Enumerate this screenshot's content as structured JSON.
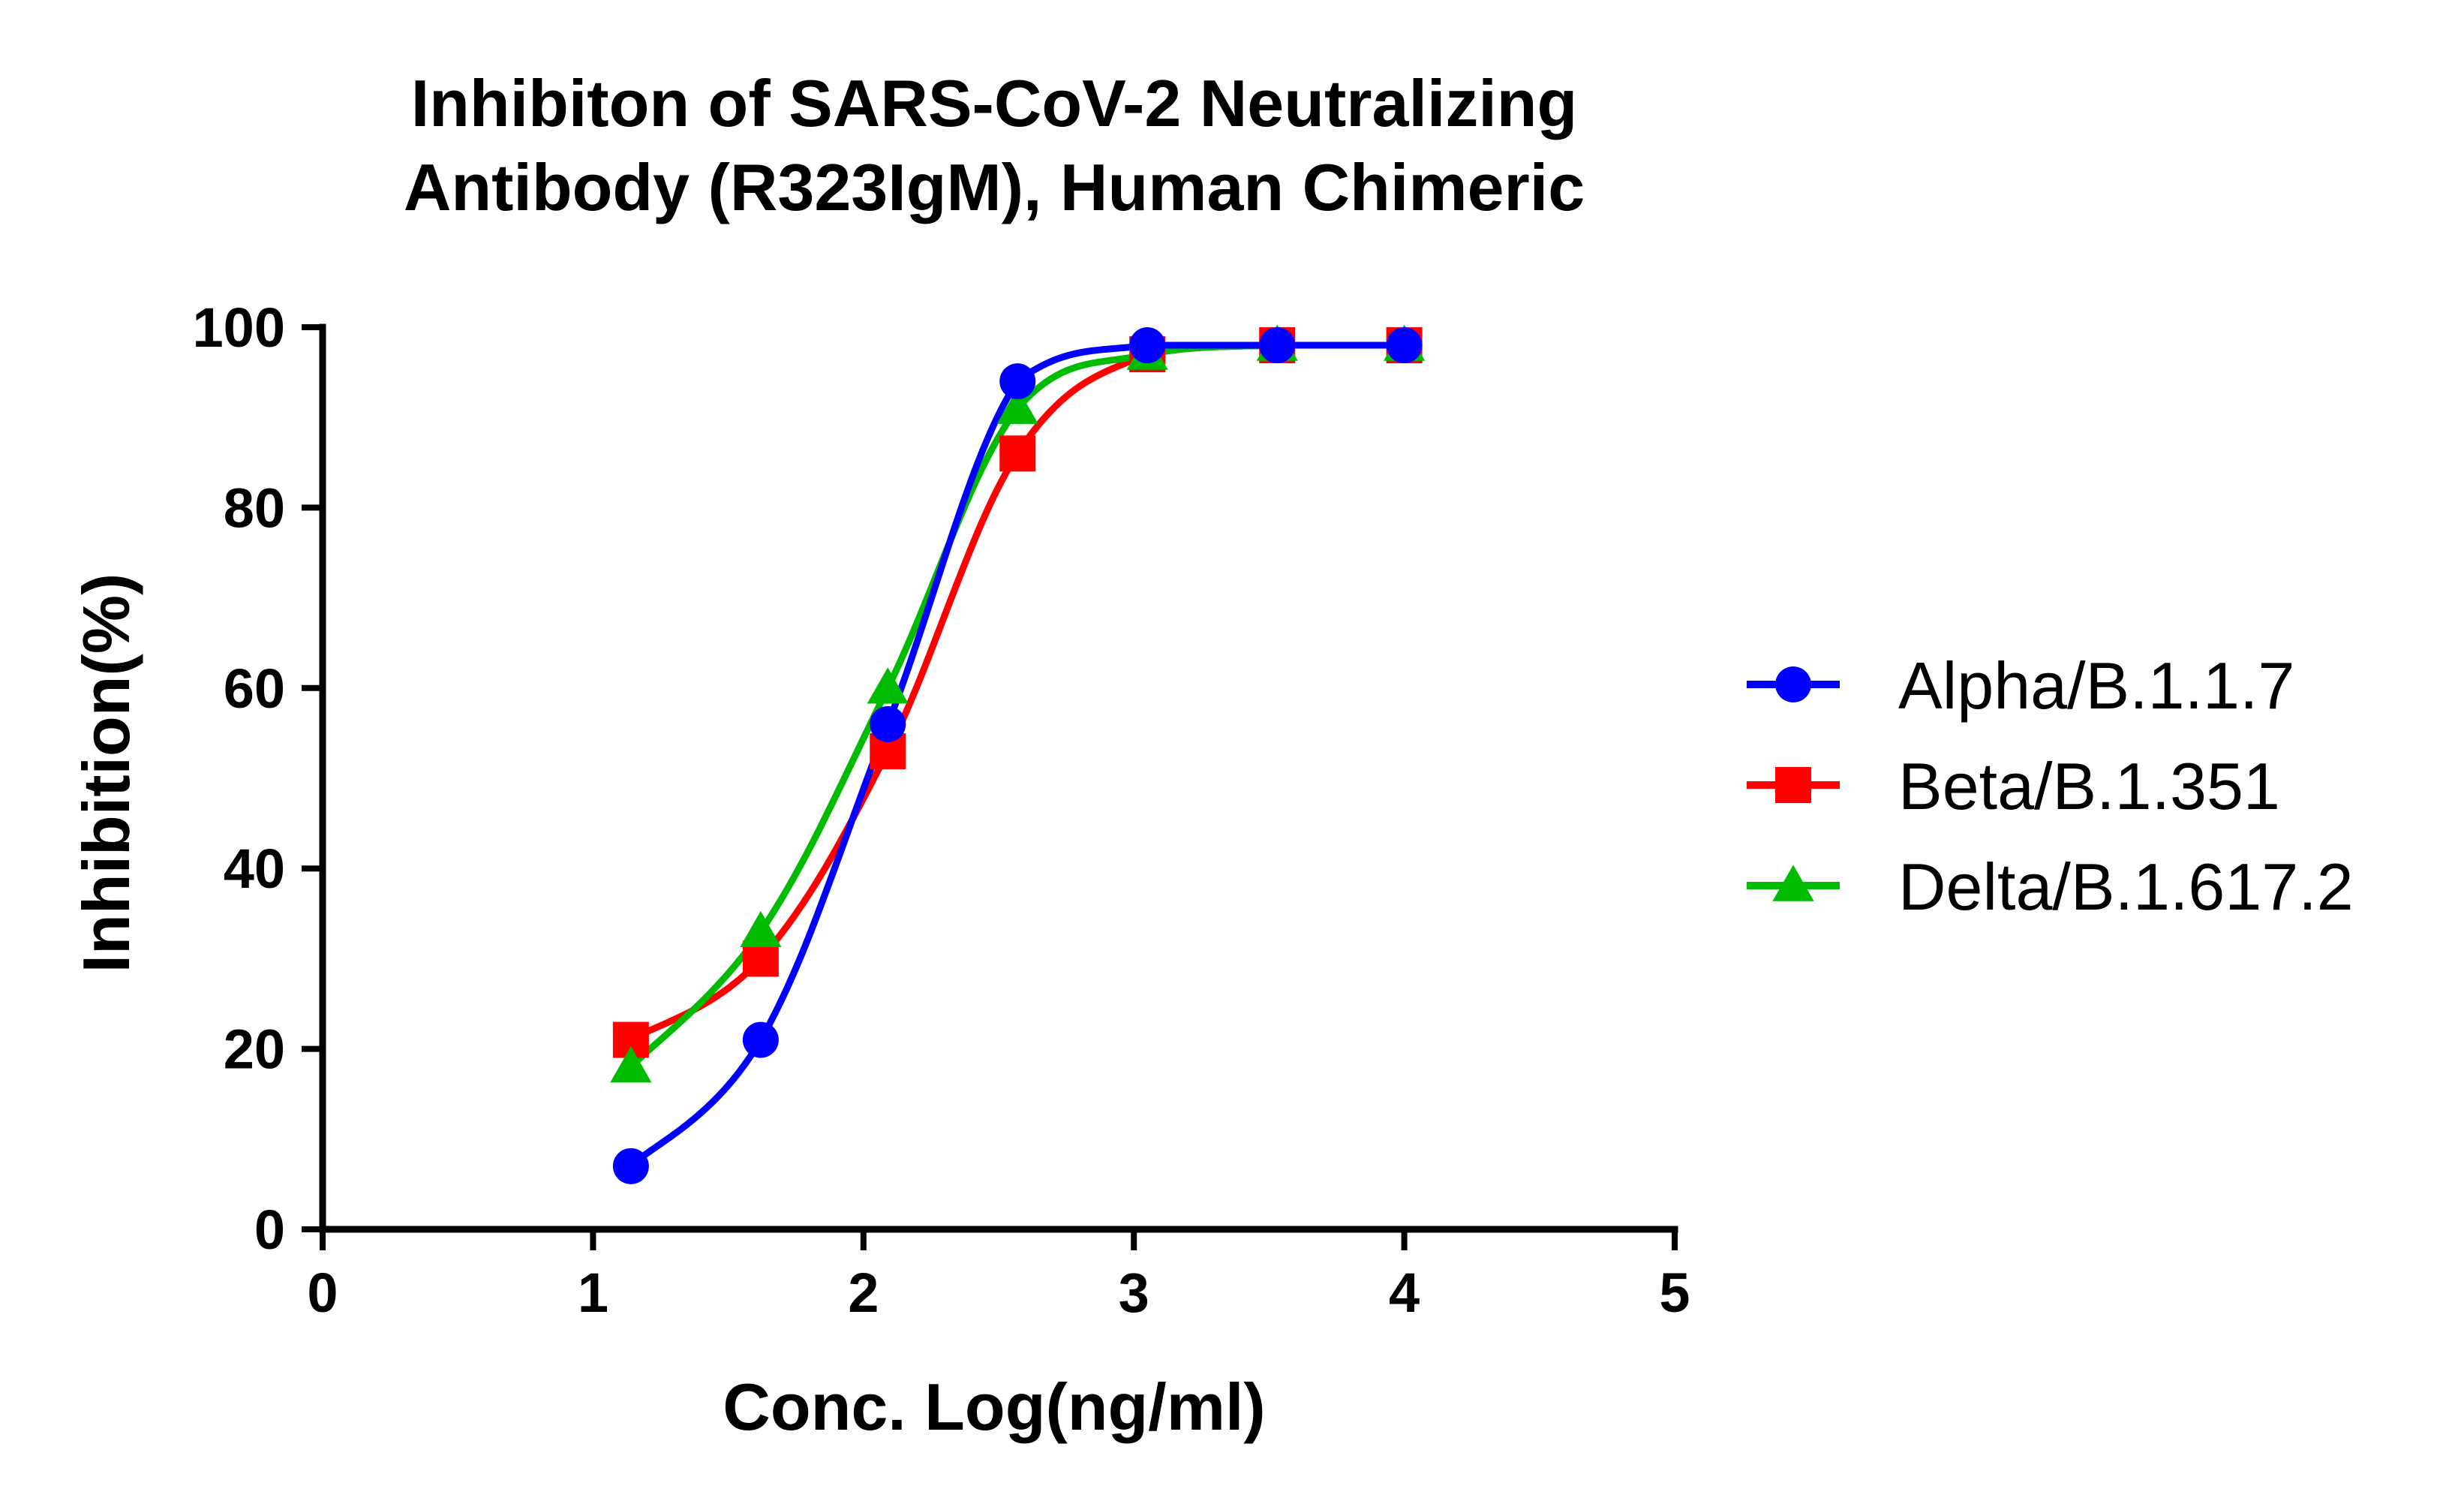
{
  "chart_data": {
    "type": "scatter",
    "title_lines": [
      "Inhibiton of SARS-CoV-2 Neutralizing",
      "Antibody (R323IgM), Human Chimeric"
    ],
    "xlabel": "Conc. Log(ng/ml)",
    "ylabel": "Inhibition(%)",
    "xlim": [
      0,
      5
    ],
    "ylim": [
      0,
      100
    ],
    "xticks": [
      "0",
      "1",
      "2",
      "3",
      "4",
      "5"
    ],
    "yticks": [
      "0",
      "20",
      "40",
      "60",
      "80",
      "100"
    ],
    "grid": false,
    "legend_position": "right",
    "fit": "four-parameter logistic curve through each series",
    "series": [
      {
        "name": "Alpha/B.1.1.7",
        "color": "#0000FF",
        "marker": "circle",
        "x": [
          1.14,
          1.62,
          2.09,
          2.57,
          3.05,
          3.53,
          4.0
        ],
        "y": [
          7,
          21,
          56,
          94,
          98,
          98,
          98
        ]
      },
      {
        "name": "Beta/B.1.351",
        "color": "#FF0000",
        "marker": "square",
        "x": [
          1.14,
          1.62,
          2.09,
          2.57,
          3.05,
          3.53,
          4.0
        ],
        "y": [
          21,
          30,
          53,
          86,
          97,
          98,
          98
        ]
      },
      {
        "name": "Delta/B.1.617.2",
        "color": "#00BB00",
        "marker": "triangle",
        "x": [
          1.14,
          1.62,
          2.09,
          2.57,
          3.05,
          3.53,
          4.0
        ],
        "y": [
          18,
          33,
          60,
          91,
          97,
          98,
          98
        ]
      }
    ]
  }
}
